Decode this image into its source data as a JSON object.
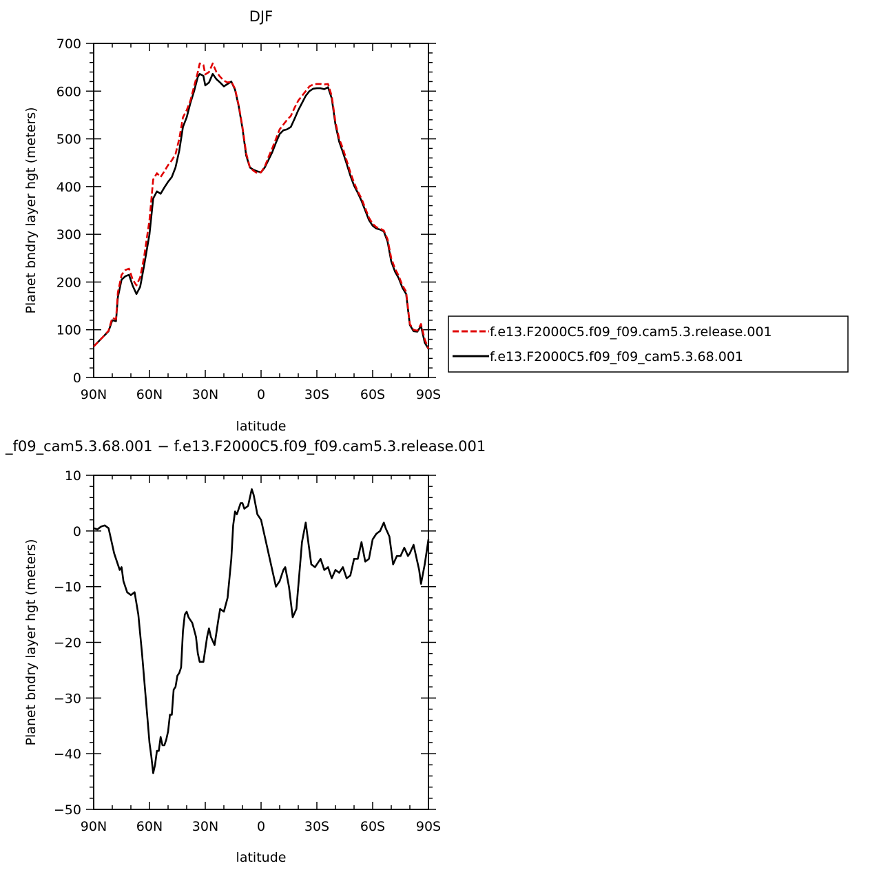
{
  "chart_data": [
    {
      "type": "line",
      "title": "DJF",
      "xlabel": "latitude",
      "ylabel": "Planet bndry layer hgt (meters)",
      "xlim": [
        -90,
        90
      ],
      "ylim": [
        0,
        700
      ],
      "x_ticks": [
        -90,
        -60,
        -30,
        0,
        30,
        60,
        90
      ],
      "x_tick_labels": [
        "90N",
        "60N",
        "30N",
        "0",
        "30S",
        "60S",
        "90S"
      ],
      "y_ticks": [
        0,
        100,
        200,
        300,
        400,
        500,
        600,
        700
      ],
      "y_tick_labels": [
        "0",
        "100",
        "200",
        "300",
        "400",
        "500",
        "600",
        "700"
      ],
      "legend_position": "right",
      "series": [
        {
          "name": "f.e13.F2000C5.f09_f09.cam5.3.release.001",
          "color": "#e00000",
          "dash": "dashed",
          "x": [
            -90,
            -85,
            -82,
            -80,
            -78,
            -77,
            -75,
            -73,
            -71,
            -69,
            -67,
            -65,
            -63,
            -60,
            -58,
            -56,
            -54,
            -52,
            -50,
            -48,
            -46,
            -44,
            -42,
            -40,
            -38,
            -36,
            -34,
            -33,
            -31,
            -30,
            -28,
            -26,
            -24,
            -22,
            -20,
            -18,
            -16,
            -14,
            -12,
            -10,
            -8,
            -6,
            -4,
            -2,
            0,
            2,
            4,
            6,
            8,
            10,
            12,
            14,
            16,
            18,
            20,
            22,
            24,
            26,
            28,
            30,
            32,
            34,
            36,
            38,
            40,
            42,
            44,
            46,
            48,
            50,
            52,
            54,
            56,
            58,
            60,
            62,
            64,
            66,
            68,
            70,
            72,
            74,
            76,
            78,
            80,
            82,
            84,
            86,
            88,
            90
          ],
          "y": [
            65,
            85,
            98,
            125,
            122,
            178,
            215,
            225,
            228,
            205,
            193,
            210,
            250,
            330,
            415,
            428,
            420,
            432,
            445,
            455,
            468,
            500,
            545,
            560,
            580,
            610,
            640,
            658,
            655,
            635,
            640,
            658,
            640,
            630,
            622,
            618,
            620,
            605,
            570,
            525,
            470,
            440,
            433,
            428,
            430,
            442,
            462,
            480,
            500,
            520,
            530,
            540,
            548,
            565,
            580,
            590,
            600,
            610,
            614,
            615,
            615,
            614,
            615,
            590,
            535,
            500,
            480,
            455,
            430,
            408,
            390,
            375,
            355,
            335,
            322,
            315,
            312,
            308,
            290,
            250,
            228,
            213,
            193,
            180,
            112,
            100,
            98,
            112,
            80,
            60
          ]
        },
        {
          "name": "f.e13.F2000C5.f09_f09_cam5.3.68.001",
          "color": "#000000",
          "dash": "solid",
          "x": [
            -90,
            -85,
            -82,
            -80,
            -78,
            -77,
            -75,
            -73,
            -71,
            -69,
            -67,
            -65,
            -63,
            -60,
            -58,
            -56,
            -54,
            -52,
            -50,
            -48,
            -46,
            -44,
            -42,
            -40,
            -38,
            -36,
            -34,
            -33,
            -31,
            -30,
            -28,
            -26,
            -24,
            -22,
            -20,
            -18,
            -16,
            -14,
            -12,
            -10,
            -8,
            -6,
            -4,
            -2,
            0,
            2,
            4,
            6,
            8,
            10,
            12,
            14,
            16,
            18,
            20,
            22,
            24,
            26,
            28,
            30,
            32,
            34,
            36,
            38,
            40,
            42,
            44,
            46,
            48,
            50,
            52,
            54,
            56,
            58,
            60,
            62,
            64,
            66,
            68,
            70,
            72,
            74,
            76,
            78,
            80,
            82,
            84,
            86,
            88,
            90
          ],
          "y": [
            65,
            85,
            97,
            120,
            118,
            168,
            205,
            212,
            215,
            192,
            175,
            190,
            232,
            300,
            375,
            390,
            385,
            398,
            410,
            420,
            440,
            475,
            525,
            545,
            575,
            600,
            630,
            636,
            632,
            612,
            618,
            636,
            625,
            618,
            610,
            615,
            620,
            603,
            568,
            522,
            465,
            440,
            435,
            432,
            430,
            440,
            456,
            472,
            492,
            510,
            518,
            520,
            525,
            542,
            560,
            575,
            590,
            600,
            605,
            606,
            606,
            604,
            608,
            585,
            530,
            494,
            472,
            448,
            423,
            402,
            387,
            370,
            350,
            330,
            318,
            312,
            310,
            306,
            285,
            243,
            222,
            208,
            188,
            175,
            110,
            97,
            96,
            108,
            73,
            60
          ]
        }
      ]
    },
    {
      "type": "line",
      "title": "_f09_cam5.3.68.001 − f.e13.F2000C5.f09_f09.cam5.3.release.001",
      "xlabel": "latitude",
      "ylabel": "Planet bndry layer hgt (meters)",
      "xlim": [
        -90,
        90
      ],
      "ylim": [
        -50,
        10
      ],
      "x_ticks": [
        -90,
        -60,
        -30,
        0,
        30,
        60,
        90
      ],
      "x_tick_labels": [
        "90N",
        "60N",
        "30N",
        "0",
        "30S",
        "60S",
        "90S"
      ],
      "y_ticks": [
        -50,
        -40,
        -30,
        -20,
        -10,
        0,
        10
      ],
      "y_tick_labels": [
        "−50",
        "−40",
        "−30",
        "−20",
        "−10",
        "0",
        "10"
      ],
      "series": [
        {
          "color": "#000000",
          "dash": "solid",
          "x": [
            -90,
            -88,
            -86,
            -84,
            -82,
            -80,
            -79,
            -78,
            -76,
            -75,
            -74,
            -72,
            -70,
            -68,
            -66,
            -64,
            -62,
            -61,
            -60,
            -59,
            -58,
            -57,
            -56,
            -55,
            -54,
            -53,
            -52,
            -51,
            -50,
            -49,
            -48,
            -47,
            -46,
            -45,
            -44,
            -43,
            -42,
            -41,
            -40,
            -39,
            -38,
            -37,
            -35,
            -34,
            -33,
            -31,
            -29,
            -28,
            -27,
            -25,
            -23,
            -22,
            -20,
            -18,
            -16,
            -15,
            -14,
            -13,
            -11,
            -10,
            -9,
            -7,
            -5,
            -4,
            -2,
            0,
            2,
            4,
            6,
            8,
            10,
            12,
            13,
            15,
            17,
            19,
            21,
            22,
            24,
            25,
            27,
            29,
            30,
            32,
            34,
            36,
            38,
            40,
            42,
            44,
            46,
            48,
            50,
            52,
            54,
            56,
            58,
            60,
            62,
            64,
            66,
            67,
            69,
            71,
            73,
            75,
            77,
            79,
            80,
            82,
            84,
            85,
            86,
            88,
            90
          ],
          "y": [
            0.5,
            0.3,
            0.8,
            1.0,
            0.5,
            -2.5,
            -4,
            -5,
            -7,
            -6.5,
            -9,
            -11,
            -11.5,
            -11,
            -15,
            -22,
            -30,
            -34,
            -38,
            -40.5,
            -43.5,
            -42,
            -39.5,
            -39.5,
            -37,
            -38.5,
            -38.5,
            -37.5,
            -36,
            -33,
            -33,
            -28.5,
            -28,
            -26,
            -25.5,
            -24.5,
            -18,
            -15,
            -14.5,
            -15.5,
            -16,
            -16.5,
            -19,
            -22,
            -23.5,
            -23.5,
            -19,
            -17.5,
            -19,
            -20.5,
            -16,
            -14,
            -14.5,
            -12,
            -5,
            1,
            3.5,
            3,
            5,
            5,
            4,
            4.5,
            7.5,
            6.5,
            3,
            2,
            -1,
            -4,
            -7,
            -10,
            -9,
            -7,
            -6.5,
            -10,
            -15.5,
            -14,
            -6,
            -2,
            1.5,
            -1,
            -6,
            -6.5,
            -6,
            -5,
            -7,
            -6.5,
            -8.5,
            -7,
            -7.5,
            -6.5,
            -8.5,
            -8,
            -5,
            -5,
            -2,
            -5.5,
            -5,
            -1.5,
            -0.5,
            0,
            1.5,
            0.5,
            -1,
            -6,
            -4.5,
            -4.5,
            -3,
            -4.5,
            -4,
            -2.5,
            -5.5,
            -7,
            -9.5,
            -6,
            -1.5
          ]
        }
      ]
    }
  ]
}
